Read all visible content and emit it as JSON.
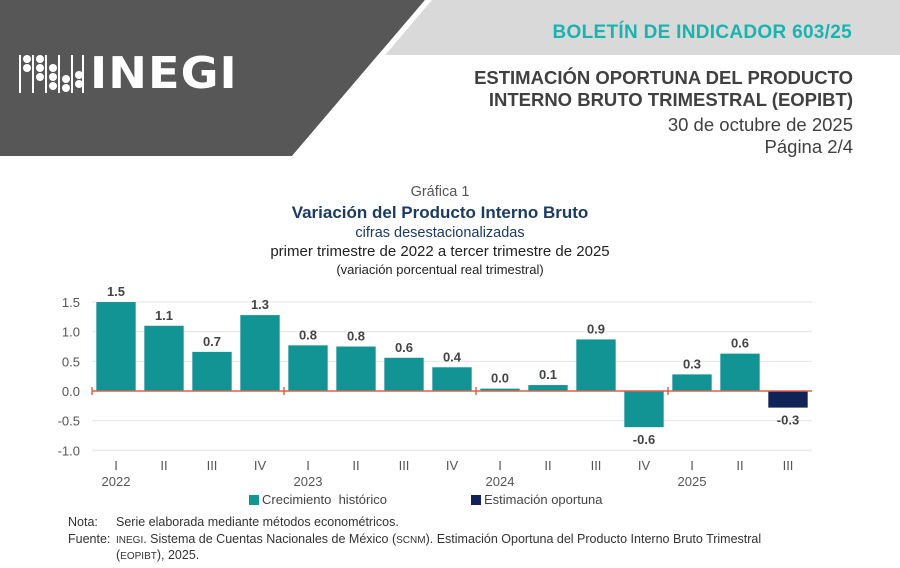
{
  "header": {
    "logo_text": "INEGI",
    "bulletin": "BOLETÍN DE INDICADOR 603/25",
    "title_line1": "ESTIMACIÓN OPORTUNA DEL PRODUCTO",
    "title_line2": "INTERNO BRUTO TRIMESTRAL (EOPIBT)",
    "date": "30 de octubre de 2025",
    "page": "Página 2/4",
    "colors": {
      "dark_band": "#575757",
      "light_band": "#d9d9d9",
      "bulletin": "#19b3b0"
    }
  },
  "chart_data": {
    "type": "bar",
    "label": "Gráfica 1",
    "title": "Variación del Producto Interno Bruto",
    "subtitle1": "cifras desestacionalizadas",
    "subtitle2": "primer trimestre de 2022 a tercer trimestre de 2025",
    "subtitle3": "(variación porcentual real trimestral)",
    "xlabel": "",
    "ylabel": "",
    "ylim": [
      -1.0,
      1.5
    ],
    "yticks": [
      1.5,
      1.0,
      0.5,
      0.0,
      -0.5,
      -1.0
    ],
    "ytick_labels": [
      "1.5",
      "1.0",
      "0.5",
      "0.0",
      "-0.5",
      "-1.0"
    ],
    "grid": true,
    "categories": [
      "I",
      "II",
      "III",
      "IV",
      "I",
      "II",
      "III",
      "IV",
      "I",
      "II",
      "III",
      "IV",
      "I",
      "II",
      "III"
    ],
    "years": [
      {
        "label": "2022",
        "index": 0
      },
      {
        "label": "2023",
        "index": 4
      },
      {
        "label": "2024",
        "index": 8
      },
      {
        "label": "2025",
        "index": 12
      }
    ],
    "values": [
      1.5,
      1.1,
      0.66,
      1.28,
      0.77,
      0.75,
      0.56,
      0.4,
      0.04,
      0.1,
      0.87,
      -0.61,
      0.28,
      0.63,
      -0.28
    ],
    "data_labels": [
      "1.5",
      "1.1",
      "0.7",
      "1.3",
      "0.8",
      "0.8",
      "0.6",
      "0.4",
      "0.0",
      "0.1",
      "0.9",
      "-0.6",
      "0.3",
      "0.6",
      "-0.3"
    ],
    "series_index": [
      0,
      0,
      0,
      0,
      0,
      0,
      0,
      0,
      0,
      0,
      0,
      0,
      0,
      0,
      1
    ],
    "series": [
      {
        "name": "Crecimiento  histórico",
        "color": "#139494"
      },
      {
        "name": "Estimación oportuna",
        "color": "#0f2356"
      }
    ],
    "zero_line_color": "#e0603a",
    "legend_position": "bottom"
  },
  "notes": {
    "nota_label": "Nota:",
    "nota_text": "Serie elaborada mediante métodos econométricos.",
    "fuente_label": "Fuente:",
    "fuente_org": "INEGI",
    "fuente_text_a": ". Sistema de Cuentas Nacionales de México (",
    "fuente_scnm": "SCNM",
    "fuente_text_b": "). Estimación Oportuna del Producto Interno Bruto Trimestral",
    "fuente_line2_open": "(",
    "fuente_eopibt": "EOPIBT",
    "fuente_line2_close": "), 2025."
  }
}
